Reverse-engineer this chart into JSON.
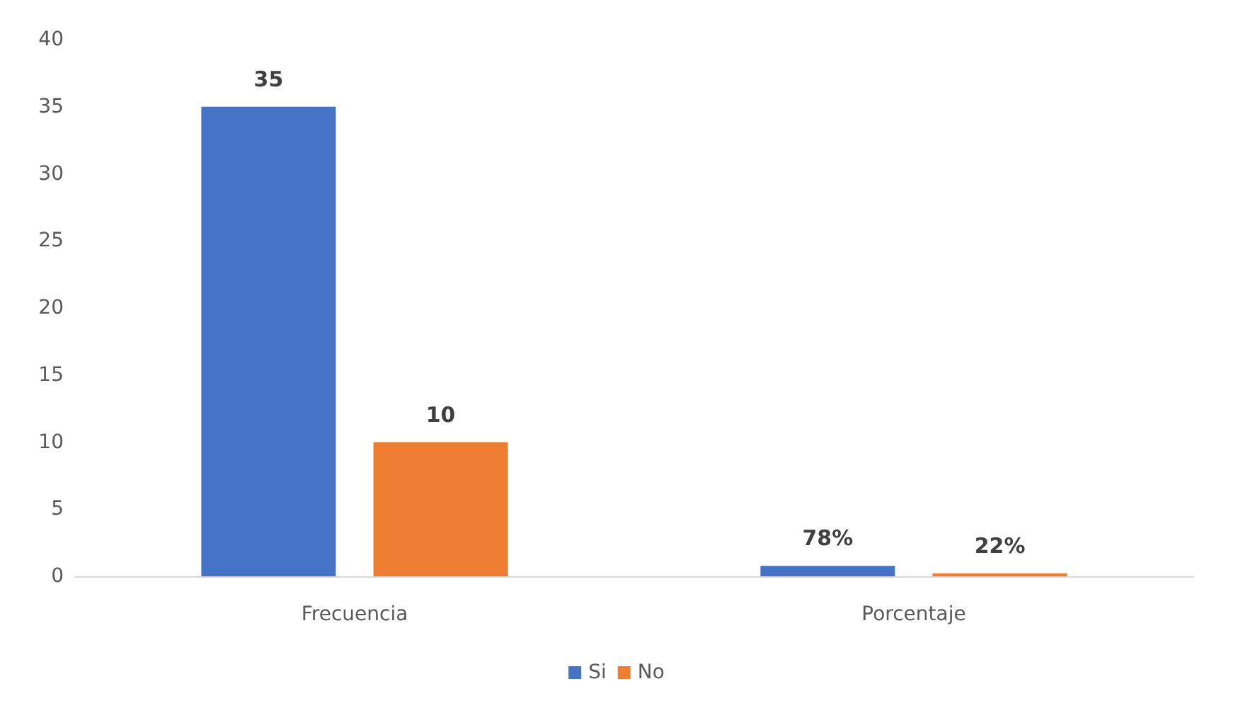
{
  "chart_data": {
    "type": "bar",
    "categories": [
      "Frecuencia",
      "Porcentaje"
    ],
    "series": [
      {
        "name": "Si",
        "color": "#4472c4",
        "values": [
          35,
          0.78
        ],
        "value_labels": [
          "35",
          "78%"
        ]
      },
      {
        "name": "No",
        "color": "#ed7d31",
        "values": [
          10,
          0.22
        ],
        "value_labels": [
          "10",
          "22%"
        ]
      }
    ],
    "ylim": [
      0,
      40
    ],
    "yticks": [
      0,
      5,
      10,
      15,
      20,
      25,
      30,
      35,
      40
    ],
    "grid": false,
    "legend": "bottom"
  }
}
